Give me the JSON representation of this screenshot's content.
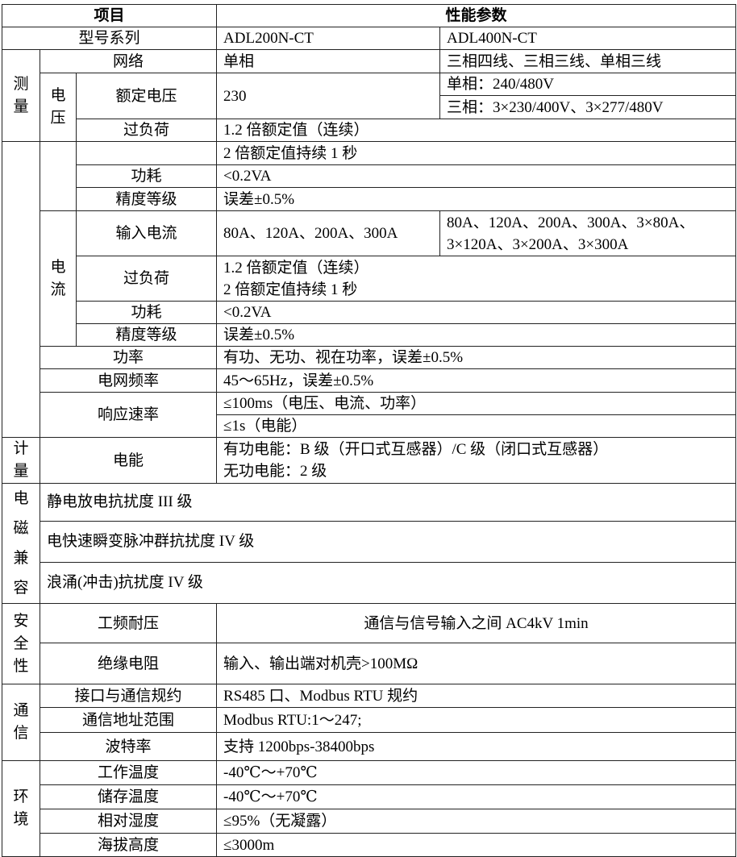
{
  "header": {
    "item": "项目",
    "params": "性能参数"
  },
  "model": {
    "label": "型号系列",
    "a": "ADL200N-CT",
    "b": "ADL400N-CT"
  },
  "measure": {
    "group": "测量",
    "network": {
      "label": "网络",
      "a": "单相",
      "b": "三相四线、三相三线、单相三线"
    },
    "voltage": {
      "group": "电压",
      "rated_label": "额定电压",
      "rated_a": "230",
      "rated_b1": "单相：240/480V",
      "rated_b2": "三相：3×230/400V、3×277/480V",
      "overload_label": "过负荷",
      "overload_1": "1.2 倍额定值（连续）",
      "overload_2": "2 倍额定值持续 1 秒",
      "power_label": "功耗",
      "power": "<0.2VA",
      "accuracy_label": "精度等级",
      "accuracy": "误差±0.5%"
    },
    "current": {
      "group": "电流",
      "input_label": "输入电流",
      "input_a": "80A、120A、200A、300A",
      "input_b1": "80A、120A、200A、300A、3×80A、",
      "input_b2": "3×120A、3×200A、3×300A",
      "overload_label": "过负荷",
      "overload_1": "1.2 倍额定值（连续）",
      "overload_2": "2 倍额定值持续 1 秒",
      "power_label": "功耗",
      "power": "<0.2VA",
      "accuracy_label": "精度等级",
      "accuracy": "误差±0.5%"
    },
    "power": {
      "label": "功率",
      "value": "有功、无功、视在功率，误差±0.5%"
    },
    "frequency": {
      "label": "电网频率",
      "value": "45～65Hz，误差±0.5%"
    },
    "response": {
      "label": "响应速率",
      "v1": "≤100ms（电压、电流、功率）",
      "v2": "≤1s（电能）"
    }
  },
  "metering": {
    "group": "计量",
    "label": "电能",
    "v1": "有功电能：B 级（开口式互感器）/C 级（闭口式互感器）",
    "v2": "无功电能：2 级"
  },
  "emc": {
    "group": "电磁兼容",
    "items": [
      "静电放电抗扰度 III 级",
      "电快速瞬变脉冲群抗扰度 IV 级",
      "浪涌(冲击)抗扰度 IV 级"
    ]
  },
  "safety": {
    "group": "安全性",
    "withstand_label": "工频耐压",
    "withstand": "通信与信号输入之间 AC4kV 1min",
    "insulation_label": "绝缘电阻",
    "insulation": "输入、输出端对机壳>100MΩ"
  },
  "comm": {
    "group": "通信",
    "interface_label": "接口与通信规约",
    "interface": "RS485 口、Modbus RTU 规约",
    "address_label": "通信地址范围",
    "address": "Modbus RTU:1～247;",
    "baud_label": "波特率",
    "baud": "支持 1200bps-38400bps"
  },
  "env": {
    "group": "环境",
    "rows": [
      {
        "label": "工作温度",
        "value": "-40℃～+70℃"
      },
      {
        "label": "储存温度",
        "value": "-40℃～+70℃"
      },
      {
        "label": "相对湿度",
        "value": "≤95%（无凝露）"
      },
      {
        "label": "海拔高度",
        "value": "≤3000m"
      }
    ]
  }
}
